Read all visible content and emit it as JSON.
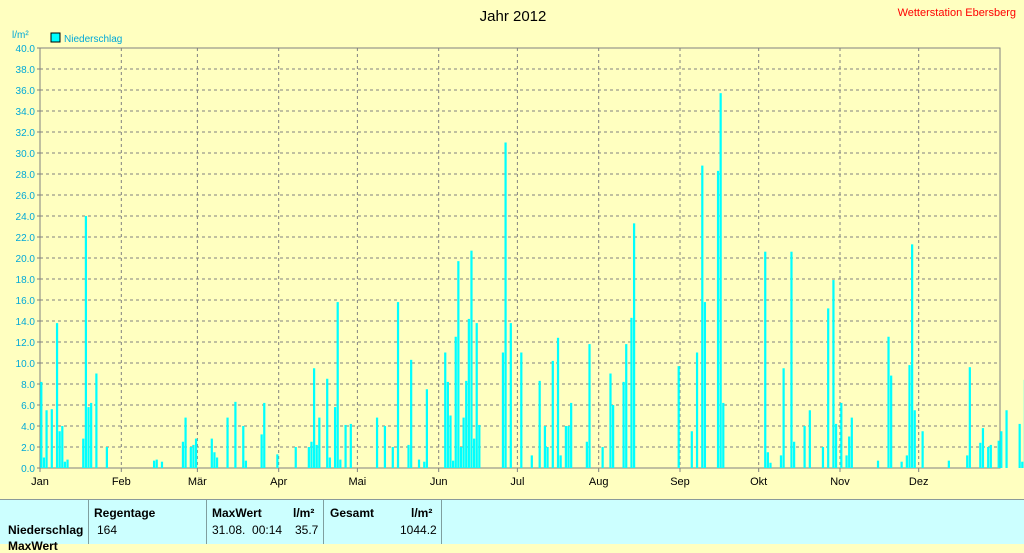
{
  "chart_data": {
    "type": "bar",
    "title": "Jahr 2012",
    "station": "Wetterstation Ebersberg",
    "ylabel": "l/m²",
    "legend": "Niederschlag",
    "ylim": [
      0,
      40
    ],
    "y_ticks": [
      "0.0",
      "2.0",
      "4.0",
      "6.0",
      "8.0",
      "10.0",
      "12.0",
      "14.0",
      "16.0",
      "18.0",
      "20.0",
      "22.0",
      "24.0",
      "26.0",
      "28.0",
      "30.0",
      "32.0",
      "34.0",
      "36.0",
      "38.0",
      "40.0"
    ],
    "months": [
      "Jan",
      "Feb",
      "Mär",
      "Apr",
      "Mai",
      "Jun",
      "Jul",
      "Aug",
      "Sep",
      "Okt",
      "Nov",
      "Dez"
    ],
    "month_days": [
      31,
      29,
      31,
      30,
      31,
      30,
      31,
      31,
      30,
      31,
      30,
      31
    ],
    "bar_color": "#00ffff",
    "values": [
      8.2,
      1.0,
      5.5,
      0,
      5.6,
      0,
      13.8,
      3.5,
      4.0,
      0.6,
      0.8,
      0,
      0,
      0,
      0,
      0,
      2.8,
      24.0,
      5.8,
      6.2,
      0,
      9.0,
      0,
      0,
      0,
      2.0,
      0,
      0,
      0,
      0,
      0,
      0,
      0,
      0,
      0,
      0,
      0,
      0,
      0,
      0,
      0,
      0,
      0,
      0.7,
      0.8,
      0,
      0.6,
      0,
      0,
      0,
      0,
      0,
      0,
      0,
      2.5,
      4.8,
      0,
      2.0,
      2.2,
      2.8,
      0,
      0,
      0,
      0,
      0,
      2.8,
      1.5,
      1.0,
      0,
      0,
      0,
      4.8,
      0,
      0,
      6.3,
      0,
      0,
      4.0,
      0.7,
      0,
      0,
      0,
      0,
      0,
      3.2,
      6.2,
      0,
      0,
      0,
      0,
      1.3,
      0,
      0,
      0,
      0,
      0,
      0,
      2.0,
      0,
      0,
      0,
      0,
      2.0,
      2.5,
      9.5,
      2.2,
      4.8,
      0,
      0,
      8.5,
      1.0,
      0,
      5.8,
      15.8,
      0.8,
      0,
      4.1,
      0,
      4.2,
      0,
      0,
      0,
      0,
      0,
      0,
      0,
      0,
      0,
      4.8,
      0,
      0,
      4.0,
      0,
      0,
      2.0,
      0,
      15.8,
      0,
      0,
      0,
      2.2,
      10.3,
      0,
      0,
      0.8,
      0,
      0.6,
      7.5,
      0,
      0,
      0,
      0,
      0,
      0,
      11.0,
      8.2,
      5.0,
      0.7,
      12.5,
      19.7,
      2.0,
      4.8,
      8.3,
      14.2,
      20.7,
      2.8,
      13.8,
      4.1,
      0,
      0,
      0,
      0,
      0,
      0,
      0,
      0,
      11.0,
      31.0,
      0,
      13.8,
      0,
      0,
      0,
      11.0,
      0,
      0,
      0,
      1.2,
      0,
      0,
      8.3,
      0,
      4.0,
      2.0,
      0,
      10.2,
      0,
      12.4,
      1.2,
      0,
      4.0,
      4.0,
      6.2,
      0,
      0,
      0,
      0,
      0,
      2.5,
      11.8,
      0,
      0,
      0,
      0,
      2.0,
      0,
      0,
      9.0,
      6.0,
      0,
      0,
      0,
      8.2,
      11.8,
      0,
      14.3,
      23.3,
      0,
      0,
      0,
      0,
      0,
      0,
      0,
      0,
      0,
      0,
      0,
      0,
      0,
      0,
      0,
      0,
      9.7,
      0,
      0,
      0,
      0,
      3.5,
      0,
      11.0,
      0,
      28.8,
      15.8,
      0,
      0,
      0,
      0,
      28.3,
      35.7,
      6.2,
      0,
      0,
      0,
      0,
      0,
      0,
      0,
      0,
      0,
      0,
      0,
      0,
      0,
      0,
      0,
      20.6,
      1.5,
      0.5,
      0,
      0,
      0,
      1.2,
      9.5,
      0,
      0,
      20.6,
      2.5,
      0,
      0,
      0,
      4.0,
      0,
      5.5,
      0,
      0,
      0,
      0,
      2.0,
      0,
      15.2,
      0,
      17.9,
      4.2,
      0,
      6.2,
      0,
      1.2,
      3.0,
      4.8,
      0,
      0,
      0,
      0,
      0,
      0,
      0,
      0,
      0,
      0.7,
      0,
      0,
      0,
      12.5,
      8.8,
      0,
      0,
      0,
      0.6,
      0,
      1.2,
      9.8,
      21.3,
      5.5,
      0,
      0,
      3.5,
      0,
      0,
      0,
      0,
      0,
      0,
      0,
      0,
      0,
      0.7,
      0,
      0,
      0,
      0,
      0,
      0,
      1.2,
      9.6,
      0,
      0,
      0,
      2.4,
      3.8,
      0,
      2.0,
      2.2,
      0,
      0,
      2.6,
      3.5,
      0,
      5.5,
      0,
      0,
      0,
      0,
      4.2,
      0.6,
      8.4,
      0,
      1.5,
      0,
      0,
      17.2,
      14.5,
      0,
      0,
      4.7,
      0,
      7.5
    ]
  },
  "stats": {
    "row_label": "Niederschlag",
    "row_label_2": "MaxWert",
    "regentage_header": "Regentage",
    "regentage_value": "164",
    "maxwert_header": "MaxWert",
    "maxwert_unit": "l/m²",
    "maxwert_date": "31.08.  00:14",
    "maxwert_value": "35.7",
    "gesamt_header": "Gesamt",
    "gesamt_unit": "l/m²",
    "gesamt_value": "1044.2"
  }
}
